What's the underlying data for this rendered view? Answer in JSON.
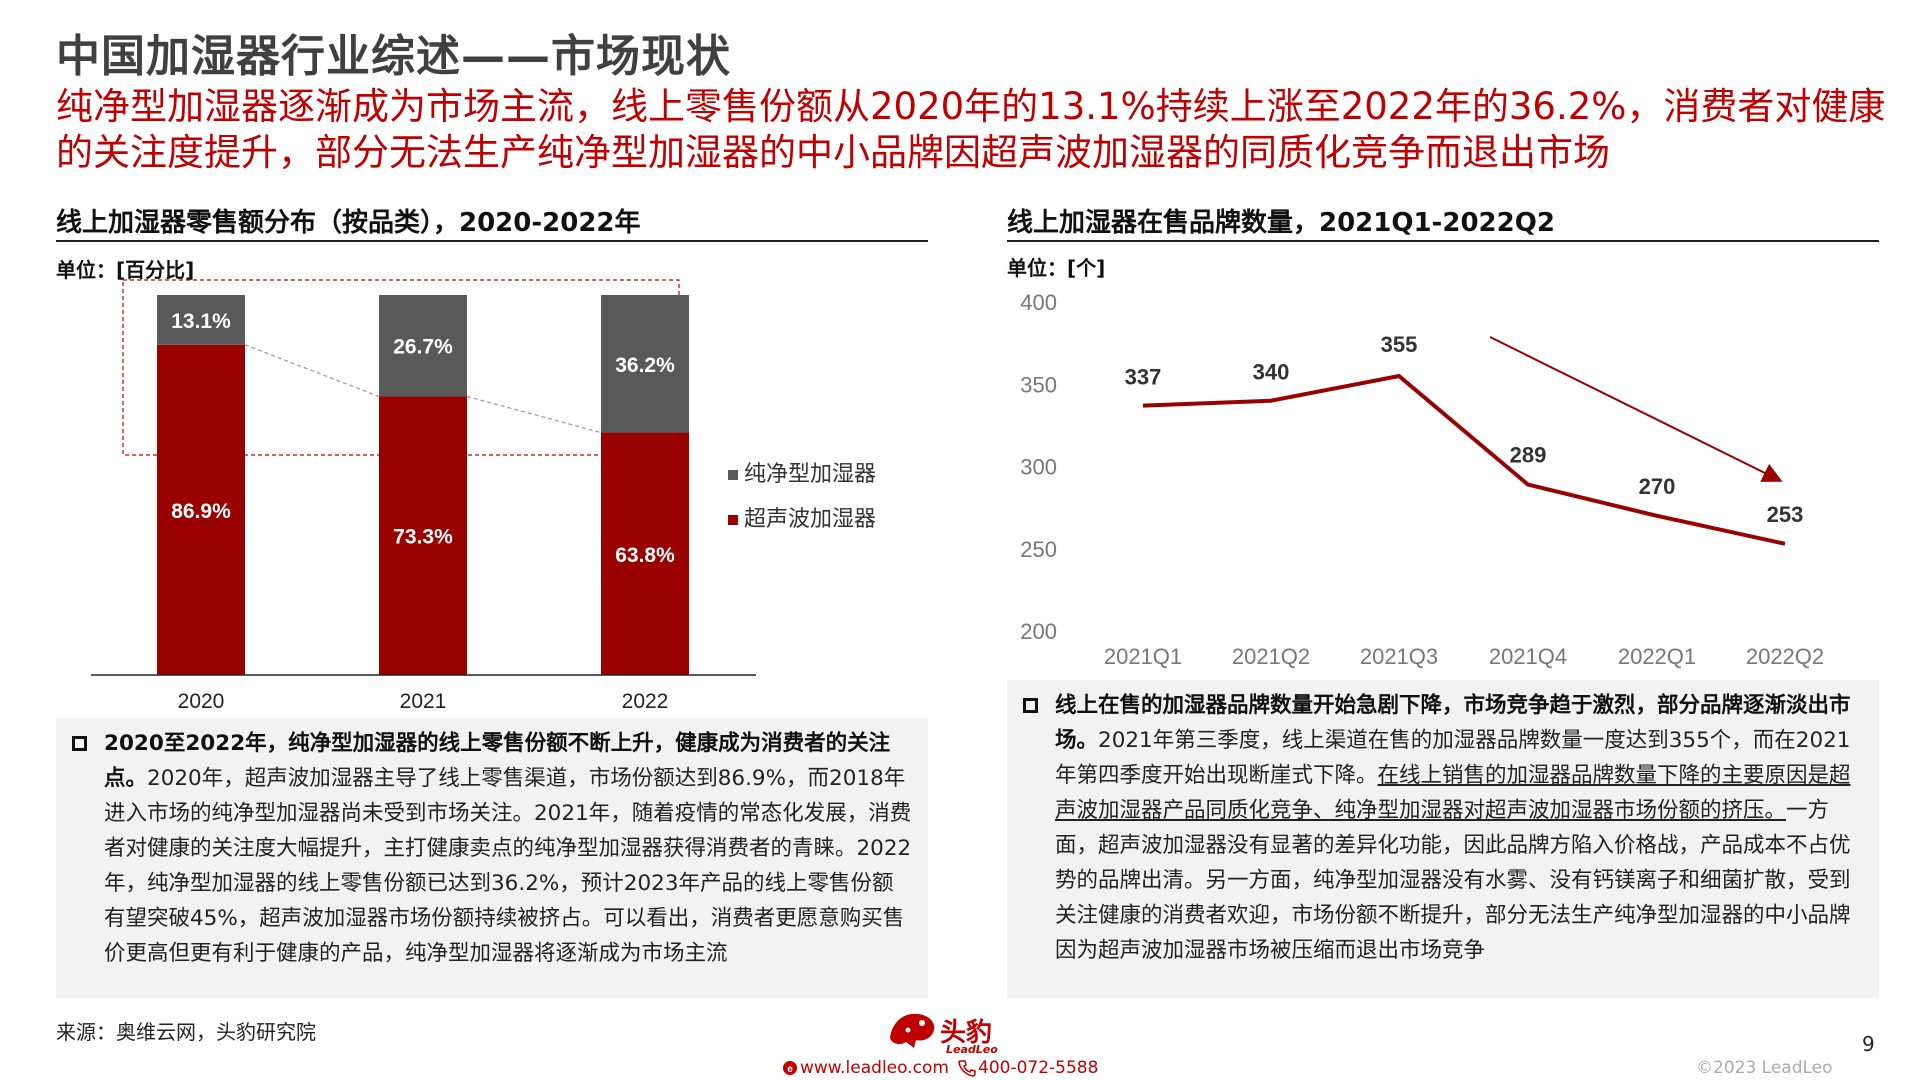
{
  "header": {
    "title": "中国加湿器行业综述——市场现状",
    "subtitle": "纯净型加湿器逐渐成为市场主流，线上零售份额从2020年的13.1%持续上涨至2022年的36.2%，消费者对健康的关注度提升，部分无法生产纯净型加湿器的中小品牌因超声波加湿器的同质化竞争而退出市场"
  },
  "left_panel": {
    "title": "线上加湿器零售额分布（按品类），2020-2022年",
    "unit": "单位：[百分比]",
    "text_bold": "2020至2022年，纯净型加湿器的线上零售份额不断上升，健康成为消费者的关注点。",
    "text_body": "2020年，超声波加湿器主导了线上零售渠道，市场份额达到86.9%，而2018年进入市场的纯净型加湿器尚未受到市场关注。2021年，随着疫情的常态化发展，消费者对健康的关注度大幅提升，主打健康卖点的纯净型加湿器获得消费者的青睐。2022年，纯净型加湿器的线上零售份额已达到36.2%，预计2023年产品的线上零售份额有望突破45%，超声波加湿器市场份额持续被挤占。可以看出，消费者更愿意购买售价更高但更有利于健康的产品，纯净型加湿器将逐渐成为市场主流"
  },
  "right_panel": {
    "title": "线上加湿器在售品牌数量，2021Q1-2022Q2",
    "unit": "单位：[个]",
    "text_bold": "线上在售的加湿器品牌数量开始急剧下降，市场竞争趋于激烈，部分品牌逐渐淡出市场。",
    "text_body1": "2021年第三季度，线上渠道在售的加湿器品牌数量一度达到355个，而在2021年第四季度开始出现断崖式下降。",
    "text_underline": "在线上销售的加湿器品牌数量下降的主要原因是超声波加湿器产品同质化竞争、纯净型加湿器对超声波加湿器市场份额的挤压。",
    "text_body2": "一方面，超声波加湿器没有显著的差异化功能，因此品牌方陷入价格战，产品成本不占优势的品牌出清。另一方面，纯净型加湿器没有水雾、没有钙镁离子和细菌扩散，受到关注健康的消费者欢迎，市场份额不断提升，部分无法生产纯净型加湿器的中小品牌因为超声波加湿器市场被压缩而退出市场竞争"
  },
  "chart_data": [
    {
      "type": "bar",
      "stacked": true,
      "categories": [
        "2020",
        "2021",
        "2022"
      ],
      "series": [
        {
          "name": "超声波加湿器",
          "values": [
            86.9,
            73.3,
            63.8
          ],
          "labels": [
            "86.9%",
            "73.3%",
            "63.8%"
          ],
          "color": "#990000"
        },
        {
          "name": "纯净型加湿器",
          "values": [
            13.1,
            26.7,
            36.2
          ],
          "labels": [
            "13.1%",
            "26.7%",
            "36.2%"
          ],
          "color": "#595959"
        }
      ],
      "ylim": [
        0,
        100
      ],
      "legend": "right",
      "grid": false
    },
    {
      "type": "line",
      "categories": [
        "2021Q1",
        "2021Q2",
        "2021Q3",
        "2021Q4",
        "2022Q1",
        "2022Q2"
      ],
      "values": [
        337,
        340,
        355,
        289,
        270,
        253
      ],
      "labels": [
        "337",
        "340",
        "355",
        "289",
        "270",
        "253"
      ],
      "yticks": [
        "200",
        "250",
        "300",
        "350",
        "400"
      ],
      "ylim": [
        200,
        400
      ],
      "color": "#990000",
      "grid": false
    }
  ],
  "footer": {
    "source": "来源：奥维云网，头豹研究院",
    "logo_text": "头豹",
    "logo_sub": "LeadLeo",
    "website": "www.leadleo.com",
    "phone": "400-072-5588",
    "copyright": "©2023 LeadLeo",
    "page_number": "9"
  },
  "colors": {
    "accent": "#c00000",
    "bar_dark_red": "#990000",
    "bar_gray": "#595959"
  }
}
